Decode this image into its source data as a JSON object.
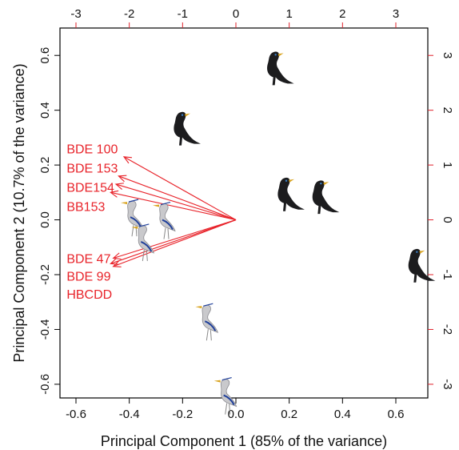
{
  "chart_data": {
    "type": "scatter",
    "title": "",
    "xlabel": "Principal Component 1 (85% of the variance)",
    "ylabel": "Principal Component 2 (10.7% of the variance)",
    "xlim": [
      -0.66,
      0.72
    ],
    "ylim": [
      -0.65,
      0.7
    ],
    "x_ticks": [
      "-0.6",
      "-0.4",
      "-0.2",
      "0.0",
      "0.2",
      "0.4",
      "0.6"
    ],
    "y_ticks": [
      "-0.6",
      "-0.4",
      "-0.2",
      "0.0",
      "0.2",
      "0.4",
      "0.6"
    ],
    "x_tick_values": [
      -0.6,
      -0.4,
      -0.2,
      0.0,
      0.2,
      0.4,
      0.6
    ],
    "y_tick_values": [
      -0.6,
      -0.4,
      -0.2,
      0.0,
      0.2,
      0.4,
      0.6
    ],
    "top_axis": {
      "labels": [
        "-3",
        "-2",
        "-1",
        "0",
        "1",
        "2",
        "3"
      ],
      "values": [
        -3,
        -2,
        -1,
        0,
        1,
        2,
        3
      ],
      "color": "#e0202a"
    },
    "right_axis": {
      "labels": [
        "-3",
        "-2",
        "-1",
        "0",
        "1",
        "2",
        "3"
      ],
      "values": [
        -3,
        -2,
        -1,
        0,
        1,
        2,
        3
      ],
      "color": "#e0202a"
    },
    "secondary_scale": 0.2,
    "grid": false,
    "vector_color": "#e8232a",
    "vectors": [
      {
        "label": "BDE 100",
        "x": -0.42,
        "y": 0.23
      },
      {
        "label": "BDE 153",
        "x": -0.44,
        "y": 0.16
      },
      {
        "label": "BDE154",
        "x": -0.45,
        "y": 0.13
      },
      {
        "label": "BB153",
        "x": -0.47,
        "y": 0.1
      },
      {
        "label": "BDE 47",
        "x": -0.46,
        "y": -0.14
      },
      {
        "label": "BDE 99",
        "x": -0.47,
        "y": -0.16
      },
      {
        "label": "HBCDD",
        "x": -0.46,
        "y": -0.17
      }
    ],
    "series": [
      {
        "name": "",
        "marker": "cormorant-icon",
        "points": [
          {
            "x": 0.14,
            "y": 0.55
          },
          {
            "x": -0.21,
            "y": 0.33
          },
          {
            "x": 0.18,
            "y": 0.09
          },
          {
            "x": 0.31,
            "y": 0.08
          },
          {
            "x": 0.67,
            "y": -0.17
          }
        ]
      },
      {
        "name": "",
        "marker": "heron-icon",
        "points": [
          {
            "x": -0.39,
            "y": 0.01
          },
          {
            "x": -0.27,
            "y": 0.0
          },
          {
            "x": -0.35,
            "y": -0.08
          },
          {
            "x": -0.11,
            "y": -0.37
          },
          {
            "x": -0.04,
            "y": -0.64
          }
        ]
      }
    ]
  }
}
